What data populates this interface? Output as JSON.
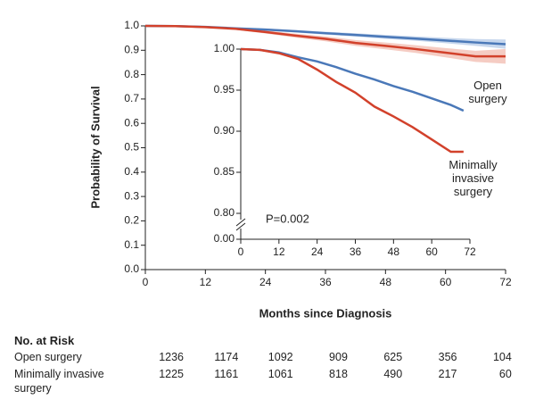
{
  "chart_data": [
    {
      "type": "line",
      "ylabel": "Probability of Survival",
      "xlabel": "Months since Diagnosis",
      "xlim": [
        0,
        72
      ],
      "xticks": [
        0,
        12,
        24,
        36,
        48,
        60,
        72
      ],
      "ylim": [
        0,
        1
      ],
      "yticks": [
        {
          "value": 0,
          "label": "0.0"
        },
        0.1,
        0.2,
        0.3,
        0.4,
        0.5,
        0.6,
        0.7,
        0.8,
        0.9,
        {
          "value": 1,
          "label": "1.0"
        }
      ],
      "x": [
        0,
        6,
        12,
        18,
        24,
        30,
        36,
        42,
        48,
        54,
        60,
        66,
        72
      ],
      "series": [
        {
          "name": "Open surgery",
          "color": "#4a78b8",
          "band_color": "#b9cde8",
          "values": [
            1.0,
            0.999,
            0.996,
            0.99,
            0.985,
            0.978,
            0.97,
            0.963,
            0.955,
            0.948,
            0.94,
            0.932,
            0.925
          ],
          "lower": [
            1.0,
            0.998,
            0.994,
            0.987,
            0.981,
            0.973,
            0.964,
            0.956,
            0.947,
            0.939,
            0.929,
            0.918,
            0.906
          ],
          "upper": [
            1.0,
            1.0,
            0.998,
            0.993,
            0.989,
            0.983,
            0.976,
            0.97,
            0.963,
            0.957,
            0.951,
            0.946,
            0.944
          ]
        },
        {
          "name": "Minimally invasive surgery",
          "color": "#d2412b",
          "band_color": "#f2bfb4",
          "values": [
            1.0,
            0.999,
            0.995,
            0.988,
            0.975,
            0.96,
            0.947,
            0.93,
            0.918,
            0.905,
            0.89,
            0.875,
            0.875
          ],
          "lower": [
            1.0,
            0.998,
            0.992,
            0.984,
            0.969,
            0.952,
            0.937,
            0.918,
            0.904,
            0.889,
            0.871,
            0.852,
            0.845
          ],
          "upper": [
            1.0,
            1.0,
            0.998,
            0.992,
            0.981,
            0.968,
            0.957,
            0.942,
            0.932,
            0.921,
            0.909,
            0.898,
            0.905
          ]
        }
      ]
    },
    {
      "type": "line",
      "axis_break": true,
      "annotation": "P=0.002",
      "xlim": [
        0,
        72
      ],
      "xticks": [
        0,
        12,
        24,
        36,
        48,
        60,
        72
      ],
      "ylim": [
        0.8,
        1.0
      ],
      "yticks": [
        {
          "value": 0,
          "label": "0.00"
        },
        {
          "value": 0.8,
          "label": "0.80"
        },
        0.85,
        {
          "value": 0.9,
          "label": "0.90"
        },
        0.95,
        {
          "value": 1,
          "label": "1.00"
        }
      ],
      "x": [
        0,
        6,
        12,
        18,
        24,
        30,
        36,
        42,
        48,
        54,
        60,
        66,
        70
      ],
      "series": [
        {
          "name": "Open surgery",
          "color": "#4a78b8",
          "values": [
            1.0,
            0.999,
            0.996,
            0.99,
            0.985,
            0.978,
            0.97,
            0.963,
            0.955,
            0.948,
            0.94,
            0.932,
            0.925
          ]
        },
        {
          "name": "Minimally invasive surgery",
          "color": "#d2412b",
          "values": [
            1.0,
            0.999,
            0.995,
            0.988,
            0.975,
            0.96,
            0.947,
            0.93,
            0.918,
            0.905,
            0.89,
            0.875,
            0.875
          ]
        }
      ]
    }
  ],
  "risk_table": {
    "title": "No. at Risk",
    "rows": [
      {
        "label": "Open surgery",
        "counts": [
          1236,
          1174,
          1092,
          909,
          625,
          356,
          104
        ]
      },
      {
        "label": "Minimally invasive surgery",
        "counts": [
          1225,
          1161,
          1061,
          818,
          490,
          217,
          60
        ]
      }
    ]
  }
}
